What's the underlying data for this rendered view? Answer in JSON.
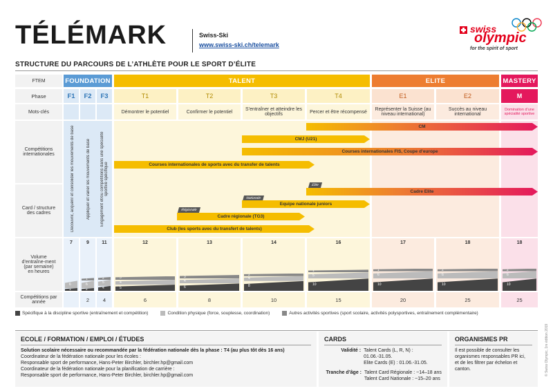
{
  "header": {
    "title": "TÉLÉMARK",
    "org": "Swiss-Ski",
    "url": "www.swiss-ski.ch/telemark",
    "logo_swiss": "swiss",
    "logo_olympic": "olympic",
    "logo_tagline": "for the spirit of sport",
    "subtitle": "STRUCTURE DU PARCOURS DE L’ATHLÈTE POUR LE SPORT D’ÉLITE"
  },
  "labels": {
    "ftem": "FTEM",
    "phase": "Phase",
    "keywords": "Mots-clés",
    "competitions": "Compétitions internationales",
    "cadres": "Card / structure des cadres",
    "volume": "Volume d’entraîne-ment (par semaine) en heures",
    "comps_per_year": "Compétitions par année"
  },
  "stages": {
    "foundation": "FOUNDATION",
    "talent": "TALENT",
    "elite": "ELITE",
    "mastery": "MASTERY"
  },
  "phases": [
    "F1",
    "F2",
    "F3",
    "T1",
    "T2",
    "T3",
    "T4",
    "E1",
    "E2",
    "M"
  ],
  "keywords": [
    "",
    "",
    "",
    "Démontrer le potentiel",
    "Confirmer le potentiel",
    "S’entraîner et atteindre les objectifs",
    "Percer et être récompensé",
    "Représenter la Suisse (au niveau international)",
    "Succès au niveau international",
    "Domination d’une spécialité sportive"
  ],
  "foundation_vertical": [
    "Découvrir, acquérir et consolider les mouvements de base",
    "Appliquer et varier les mouvements de base",
    "Engagement et/ou compétitions dans une spécialité sportive spécifique"
  ],
  "bars": {
    "cm": "CM",
    "cmj": "CMJ (U21)",
    "fis": "Courses internationales FIS, Coupe d’europe",
    "talent_transfer": "Courses internationales de sports avec du transfer de talents",
    "cadre_elite": "Cadre Elite",
    "equipe_juniors": "Equipe nationale juniors",
    "cadre_regional": "Cadre régionale (TG3)",
    "club": "Club (les sports avec du transfert de talents)"
  },
  "tags": {
    "regionale": "Régionale",
    "nationale": "Nationale",
    "elite": "Elite"
  },
  "volume": [
    7,
    9,
    11,
    12,
    13,
    14,
    16,
    17,
    18,
    18
  ],
  "volume_segments": [
    {
      "specific": 1,
      "physical": 6,
      "other": null
    },
    {
      "specific": 2,
      "physical": 6,
      "other": 1
    },
    {
      "specific": 4,
      "physical": 5,
      "other": 2
    },
    {
      "specific": 5,
      "physical": 4,
      "other": 3
    },
    {
      "specific": 6,
      "physical": 4,
      "other": 3
    },
    {
      "specific": 8,
      "physical": 4,
      "other": 2
    },
    {
      "specific": 10,
      "physical": 5,
      "other": 1
    },
    {
      "specific": 10,
      "physical": 6,
      "other": 1
    },
    {
      "specific": 10,
      "physical": 6,
      "other": 2
    },
    {
      "specific": 10,
      "physical": 6,
      "other": 2
    }
  ],
  "competitions_per_year": [
    "",
    "2",
    "4",
    "6",
    "8",
    "10",
    "15",
    "20",
    "25",
    "25"
  ],
  "legend": [
    "Spécifique à la discipline sportive (entraînement et compétition)",
    "Condition physique (force, souplesse, coordination)",
    "Autres activités sportives (sport scolaire, activités polysportives, entraînement complémentaire)"
  ],
  "colors": {
    "foundation": "#5b9bd5",
    "foundation_light": "#dce9f6",
    "talent": "#f5bd00",
    "talent_light": "#fdf1c4",
    "elite": "#ed7d31",
    "elite_light": "#fbe2d0",
    "mastery": "#e4185d",
    "mastery_light": "#fad4e0"
  },
  "school": {
    "title": "ECOLE / FORMATION / EMPLOI / ÉTUDES",
    "lines": [
      "Solution scolaire nécessaire ou recommandée par la fédération nationale dès la phase : T4 (au plus tôt dès 16 ans)",
      "Coordinateur de la fédération nationale pour les écoles :",
      "Responsable sport de performance, Hans-Peter Birchler, birchler.hp@gmail.com",
      "Coordinateur de la fédération nationale pour la planification de carrière :",
      "Responsable sport de performance, Hans-Peter Birchler, birchler.hp@gmail.com"
    ]
  },
  "cards": {
    "title": "CARDS",
    "validity_label": "Validité :",
    "validity_lines": [
      "Talent Cards (L, R, N) : 01.06.-31.05.",
      "Elite Cards (E) : 01.06.-31.05."
    ],
    "age_label": "Tranche d’âge :",
    "age_lines": [
      "Talent Card Régionale : ~14–18 ans",
      "Talent Card Nationale : ~15–20 ans"
    ]
  },
  "pr": {
    "title": "ORGANISMES PR",
    "lines": [
      "Il est possible de consulter les",
      "organismes responsables PR ici,",
      "et de les filtrer par échelon et",
      "canton."
    ]
  },
  "copyright": "© Swiss Olympic, 1re édition 2019"
}
